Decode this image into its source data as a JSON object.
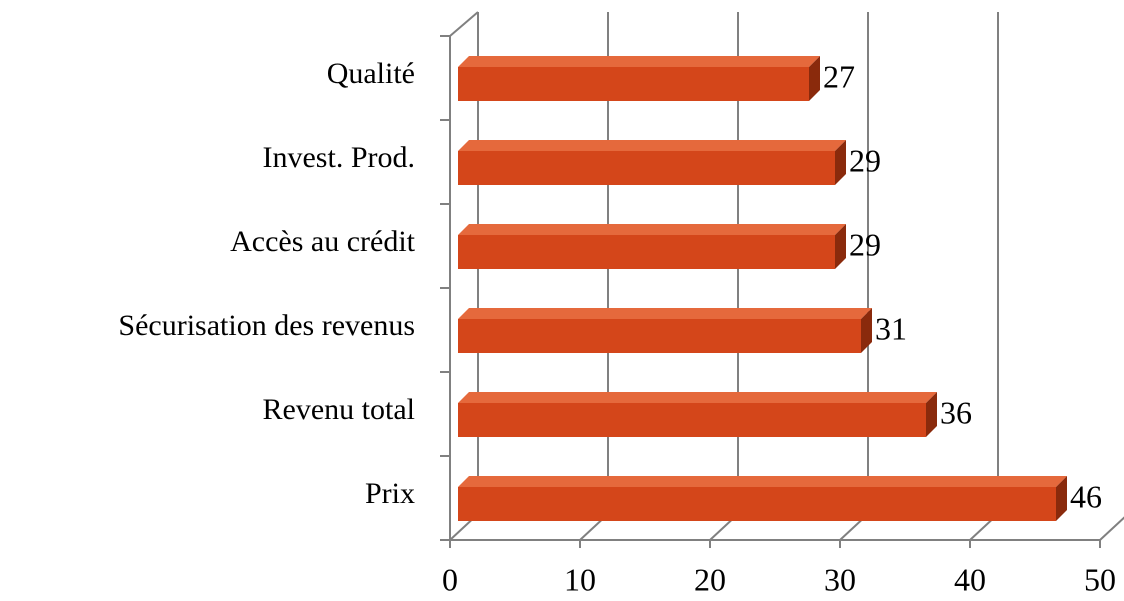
{
  "chart_data": {
    "type": "bar",
    "orientation": "horizontal",
    "three_d": true,
    "categories": [
      "Qualité",
      "Invest. Prod.",
      "Accès au crédit",
      "Sécurisation des revenus",
      "Revenu total",
      "Prix"
    ],
    "values": [
      27,
      29,
      29,
      31,
      36,
      46
    ],
    "color": "#d4461a",
    "xlim": [
      0,
      50
    ],
    "xticks": [
      0,
      10,
      20,
      30,
      40,
      50
    ],
    "grid": true
  }
}
